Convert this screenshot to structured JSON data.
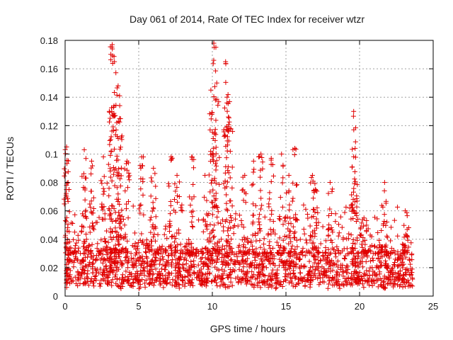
{
  "chart_data": {
    "type": "scatter",
    "title": "Day 061 of 2014, Rate Of TEC Index for receiver wtzr",
    "xlabel": "GPS time / hours",
    "ylabel": "ROTI / TECUs",
    "xlim": [
      0,
      25
    ],
    "ylim": [
      0,
      0.18
    ],
    "x_ticks": [
      0,
      5,
      10,
      15,
      20,
      25
    ],
    "x_tick_labels": [
      "0",
      "5",
      "10",
      "15",
      "20",
      "25"
    ],
    "y_ticks": [
      0,
      0.02,
      0.04,
      0.06,
      0.08,
      0.1,
      0.12,
      0.14,
      0.16,
      0.18
    ],
    "y_tick_labels": [
      "0",
      "0.02",
      "0.04",
      "0.06",
      "0.08",
      "0.1",
      "0.12",
      "0.14",
      "0.16",
      "0.18"
    ],
    "grid": true,
    "marker": "+",
    "color": "#e00000",
    "x_range_of_data": [
      0,
      23.6
    ],
    "baseline_band": [
      0.005,
      0.03
    ],
    "spikes": [
      {
        "x": 0.1,
        "y": 0.105
      },
      {
        "x": 0.2,
        "y": 0.08
      },
      {
        "x": 1.3,
        "y": 0.103
      },
      {
        "x": 1.8,
        "y": 0.095
      },
      {
        "x": 2.6,
        "y": 0.098
      },
      {
        "x": 3.0,
        "y": 0.13
      },
      {
        "x": 3.2,
        "y": 0.177
      },
      {
        "x": 3.35,
        "y": 0.165
      },
      {
        "x": 3.6,
        "y": 0.148
      },
      {
        "x": 3.7,
        "y": 0.125
      },
      {
        "x": 4.2,
        "y": 0.095
      },
      {
        "x": 5.2,
        "y": 0.098
      },
      {
        "x": 6.0,
        "y": 0.09
      },
      {
        "x": 7.2,
        "y": 0.098
      },
      {
        "x": 7.6,
        "y": 0.085
      },
      {
        "x": 8.6,
        "y": 0.098
      },
      {
        "x": 9.5,
        "y": 0.085
      },
      {
        "x": 9.9,
        "y": 0.145
      },
      {
        "x": 10.1,
        "y": 0.178
      },
      {
        "x": 10.3,
        "y": 0.15
      },
      {
        "x": 10.9,
        "y": 0.165
      },
      {
        "x": 11.0,
        "y": 0.14
      },
      {
        "x": 11.2,
        "y": 0.118
      },
      {
        "x": 12.2,
        "y": 0.085
      },
      {
        "x": 12.8,
        "y": 0.095
      },
      {
        "x": 13.3,
        "y": 0.1
      },
      {
        "x": 14.0,
        "y": 0.097
      },
      {
        "x": 14.7,
        "y": 0.1
      },
      {
        "x": 15.2,
        "y": 0.085
      },
      {
        "x": 15.6,
        "y": 0.104
      },
      {
        "x": 16.8,
        "y": 0.085
      },
      {
        "x": 17.0,
        "y": 0.075
      },
      {
        "x": 18.0,
        "y": 0.08
      },
      {
        "x": 19.6,
        "y": 0.13
      },
      {
        "x": 19.7,
        "y": 0.104
      },
      {
        "x": 20.3,
        "y": 0.055
      },
      {
        "x": 21.7,
        "y": 0.08
      },
      {
        "x": 23.1,
        "y": 0.06
      }
    ]
  }
}
